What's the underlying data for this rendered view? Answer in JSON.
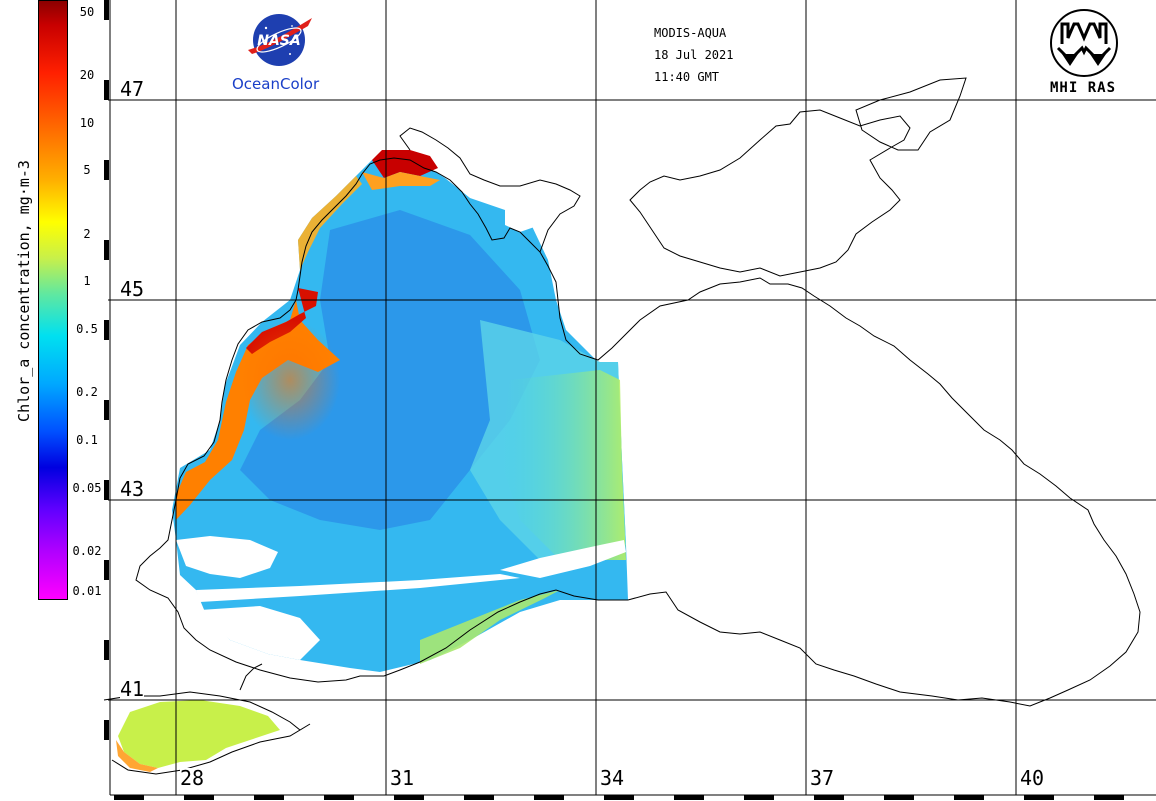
{
  "header": {
    "agency_logo": "NASA",
    "oceancolor_label": "OceanColor",
    "sensor": "MODIS-AQUA",
    "date": "18 Jul 2021",
    "time": "11:40 GMT",
    "institute_label": "MHI RAS"
  },
  "color_scale": {
    "title": "Chlor_a concentration, mg·m-3",
    "ticks": [
      "50",
      "20",
      "10",
      "5",
      "2",
      "1",
      "0.5",
      "0.2",
      "0.1",
      "0.05",
      "0.02",
      "0.01"
    ],
    "tick_values": [
      50,
      20,
      10,
      5,
      2,
      1,
      0.5,
      0.2,
      0.1,
      0.05,
      0.02,
      0.01
    ],
    "min": 0.01,
    "max": 60,
    "scale": "log",
    "colors": {
      "high": "#c80000",
      "mid_high": "#ffb000",
      "mid": "#c8f04a",
      "mid_low": "#00c8ff",
      "low": "#0000e0",
      "lowest": "#ff00ff"
    }
  },
  "map": {
    "latitude_labels": [
      "47",
      "45",
      "43",
      "41"
    ],
    "longitude_labels": [
      "28",
      "31",
      "34",
      "37",
      "40"
    ],
    "grid": true,
    "land_color": "#ffffff",
    "coast_color": "#000000"
  }
}
